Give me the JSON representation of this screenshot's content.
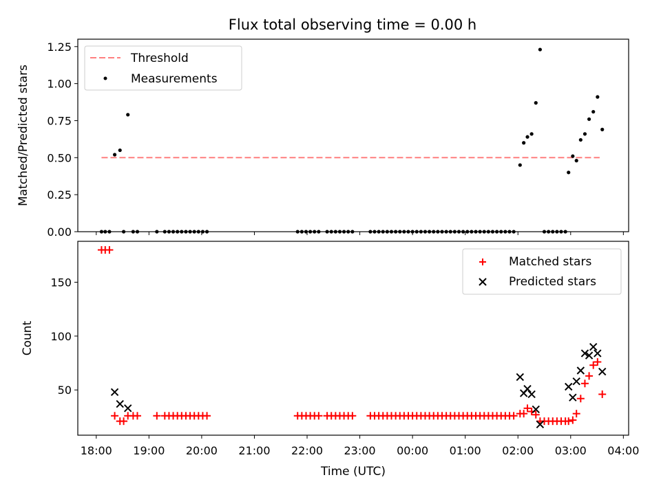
{
  "title": "Flux total observing time = 0.00 h",
  "chart_data": [
    {
      "type": "scatter",
      "ylabel": "Matched/Predicted stars",
      "xlim_hours": [
        17.65,
        28.1
      ],
      "ylim": [
        0,
        1.3
      ],
      "yticks": [
        0.0,
        0.25,
        0.5,
        0.75,
        1.0,
        1.25
      ],
      "ytick_labels": [
        "0.00",
        "0.25",
        "0.50",
        "0.75",
        "1.00",
        "1.25"
      ],
      "legend": "top-left",
      "series": [
        {
          "name": "Threshold",
          "kind": "dashed-line",
          "color": "#ff7f7f",
          "x_hours": [
            18.1,
            27.55
          ],
          "y": [
            0.5,
            0.5
          ]
        },
        {
          "name": "Measurements",
          "kind": "dots",
          "color": "#000000",
          "x_hours": [
            18.1,
            18.17,
            18.25,
            18.35,
            18.45,
            18.52,
            18.6,
            18.7,
            18.78,
            19.15,
            19.3,
            19.38,
            19.46,
            19.54,
            19.62,
            19.7,
            19.78,
            19.86,
            19.94,
            20.02,
            20.1,
            21.82,
            21.9,
            21.98,
            22.06,
            22.14,
            22.22,
            22.38,
            22.46,
            22.54,
            22.62,
            22.7,
            22.78,
            22.86,
            23.2,
            23.28,
            23.36,
            23.44,
            23.52,
            23.6,
            23.68,
            23.76,
            23.84,
            23.92,
            24.0,
            24.08,
            24.16,
            24.24,
            24.32,
            24.4,
            24.48,
            24.56,
            24.64,
            24.72,
            24.8,
            24.88,
            24.96,
            25.04,
            25.12,
            25.2,
            25.28,
            25.36,
            25.44,
            25.52,
            25.6,
            25.68,
            25.76,
            25.84,
            25.92,
            26.04,
            26.11,
            26.18,
            26.26,
            26.34,
            26.42,
            26.5,
            26.58,
            26.66,
            26.74,
            26.82,
            26.9,
            26.96,
            27.04,
            27.11,
            27.19,
            27.27,
            27.35,
            27.43,
            27.51,
            27.6
          ],
          "y": [
            0,
            0,
            0,
            0.52,
            0.55,
            0,
            0.79,
            0,
            0,
            0,
            0,
            0,
            0,
            0,
            0,
            0,
            0,
            0,
            0,
            0,
            0,
            0,
            0,
            0,
            0,
            0,
            0,
            0,
            0,
            0,
            0,
            0,
            0,
            0,
            0,
            0,
            0,
            0,
            0,
            0,
            0,
            0,
            0,
            0,
            0,
            0,
            0,
            0,
            0,
            0,
            0,
            0,
            0,
            0,
            0,
            0,
            0,
            0,
            0,
            0,
            0,
            0,
            0,
            0,
            0,
            0,
            0,
            0,
            0,
            0.45,
            0.6,
            0.64,
            0.66,
            0.87,
            1.23,
            0,
            0,
            0,
            0,
            0,
            0,
            0.4,
            0.51,
            0.48,
            0.62,
            0.66,
            0.76,
            0.81,
            0.91,
            0.69
          ]
        }
      ]
    },
    {
      "type": "scatter",
      "xlabel": "Time (UTC)",
      "ylabel": "Count",
      "xlim_hours": [
        17.65,
        28.1
      ],
      "ylim": [
        8,
        188
      ],
      "yticks": [
        50,
        100,
        150
      ],
      "ytick_labels": [
        "50",
        "100",
        "150"
      ],
      "xticks_hours": [
        18,
        19,
        20,
        21,
        22,
        23,
        24,
        25,
        26,
        27,
        28
      ],
      "xtick_labels": [
        "18:00",
        "19:00",
        "20:00",
        "21:00",
        "22:00",
        "23:00",
        "00:00",
        "01:00",
        "02:00",
        "03:00",
        "04:00"
      ],
      "legend": "top-right",
      "series": [
        {
          "name": "Matched stars",
          "kind": "plus",
          "color": "#ff0000",
          "x_hours": [
            18.1,
            18.17,
            18.25,
            18.35,
            18.45,
            18.52,
            18.6,
            18.7,
            18.78,
            19.15,
            19.3,
            19.38,
            19.46,
            19.54,
            19.62,
            19.7,
            19.78,
            19.86,
            19.94,
            20.02,
            20.1,
            21.82,
            21.9,
            21.98,
            22.06,
            22.14,
            22.22,
            22.38,
            22.46,
            22.54,
            22.62,
            22.7,
            22.78,
            22.86,
            23.2,
            23.28,
            23.36,
            23.44,
            23.52,
            23.6,
            23.68,
            23.76,
            23.84,
            23.92,
            24.0,
            24.08,
            24.16,
            24.24,
            24.32,
            24.4,
            24.48,
            24.56,
            24.64,
            24.72,
            24.8,
            24.88,
            24.96,
            25.04,
            25.12,
            25.2,
            25.28,
            25.36,
            25.44,
            25.52,
            25.6,
            25.68,
            25.76,
            25.84,
            25.92,
            26.04,
            26.11,
            26.18,
            26.26,
            26.34,
            26.42,
            26.5,
            26.58,
            26.66,
            26.74,
            26.82,
            26.9,
            26.96,
            27.04,
            27.11,
            27.19,
            27.27,
            27.35,
            27.43,
            27.51,
            27.6
          ],
          "y": [
            180,
            180,
            180,
            26,
            21,
            21,
            26,
            26,
            26,
            26,
            26,
            26,
            26,
            26,
            26,
            26,
            26,
            26,
            26,
            26,
            26,
            26,
            26,
            26,
            26,
            26,
            26,
            26,
            26,
            26,
            26,
            26,
            26,
            26,
            26,
            26,
            26,
            26,
            26,
            26,
            26,
            26,
            26,
            26,
            26,
            26,
            26,
            26,
            26,
            26,
            26,
            26,
            26,
            26,
            26,
            26,
            26,
            26,
            26,
            26,
            26,
            26,
            26,
            26,
            26,
            26,
            26,
            26,
            26,
            28,
            28,
            33,
            30,
            27,
            21,
            21,
            21,
            21,
            21,
            21,
            21,
            21,
            22,
            28,
            42,
            56,
            63,
            73,
            76,
            46
          ]
        },
        {
          "name": "Predicted stars",
          "kind": "x",
          "color": "#000000",
          "x_hours": [
            18.35,
            18.45,
            18.6,
            26.04,
            26.11,
            26.18,
            26.26,
            26.34,
            26.42,
            26.96,
            27.04,
            27.11,
            27.19,
            27.27,
            27.35,
            27.43,
            27.51,
            27.6
          ],
          "y": [
            48,
            37,
            33,
            62,
            47,
            51,
            46,
            32,
            18,
            53,
            43,
            58,
            68,
            84,
            82,
            90,
            84,
            67
          ]
        }
      ]
    }
  ]
}
